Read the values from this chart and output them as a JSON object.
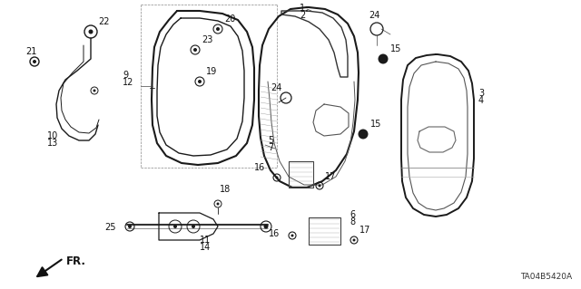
{
  "bg_color": "#ffffff",
  "diagram_id": "TA04B5420A",
  "fig_width": 6.4,
  "fig_height": 3.19,
  "dpi": 100,
  "line_color": "#1a1a1a",
  "label_fontsize": 7.0,
  "code_fontsize": 6.5
}
